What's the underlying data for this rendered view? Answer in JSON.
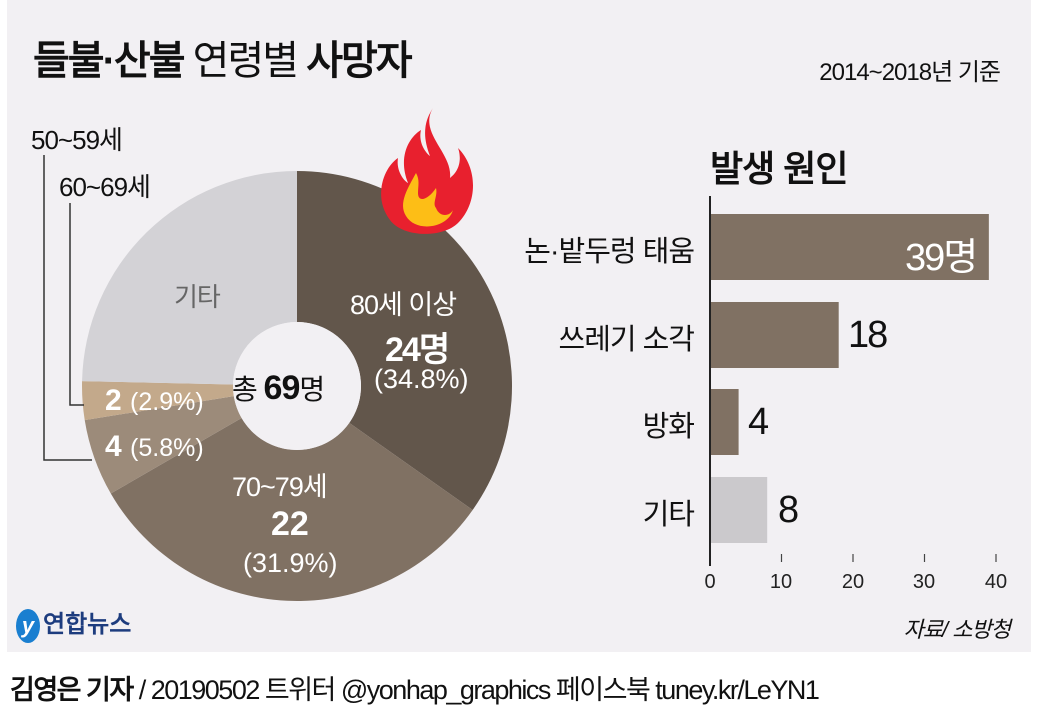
{
  "title": {
    "part1": "들불·산불",
    "part2": "연령별",
    "part3": "사망자"
  },
  "period": "2014~2018년 기준",
  "chart_data": [
    {
      "type": "pie",
      "variant": "donut",
      "center_label": {
        "prefix": "총",
        "value": "69",
        "unit": "명"
      },
      "total": 69,
      "slices": [
        {
          "name": "80세 이상",
          "value": 24,
          "value_label": "24명",
          "pct": "(34.8%)",
          "color": "#62564b"
        },
        {
          "name": "70~79세",
          "value": 22,
          "value_label": "22",
          "pct": "(31.9%)",
          "color": "#807163"
        },
        {
          "name": "50~59세",
          "value": 4,
          "value_label": "4",
          "pct": "(5.8%)",
          "color": "#9c8b7a"
        },
        {
          "name": "60~69세",
          "value": 2,
          "value_label": "2",
          "pct": "(2.9%)",
          "color": "#c3a98b"
        },
        {
          "name": "기타",
          "value": 17,
          "value_label": "",
          "pct": "",
          "color": "#d3d2d6"
        }
      ]
    },
    {
      "type": "bar",
      "orientation": "horizontal",
      "title": "발생 원인",
      "categories": [
        "논·밭두렁 태움",
        "쓰레기 소각",
        "방화",
        "기타"
      ],
      "values": [
        39,
        18,
        4,
        8
      ],
      "value_labels": [
        "39명",
        "18",
        "4",
        "8"
      ],
      "colors": [
        "#807163",
        "#807163",
        "#807163",
        "#cbc9cc"
      ],
      "xlim": [
        0,
        40
      ],
      "xticks": [
        "0",
        "10",
        "20",
        "30",
        "40"
      ]
    }
  ],
  "source": "자료/ 소방청",
  "logo": "연합뉴스",
  "credit": {
    "reporter": "김영은 기자",
    "rest": "/ 20190502  트위터 @yonhap_graphics  페이스북 tuney.kr/LeYN1"
  },
  "flame_icon": "flame-icon"
}
